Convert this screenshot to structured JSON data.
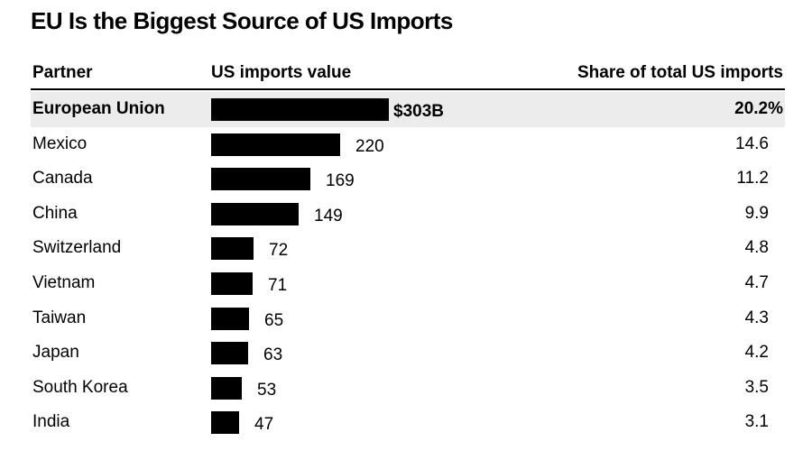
{
  "chart_data": {
    "type": "table",
    "title": "EU Is the Biggest Source of US Imports",
    "columns": [
      "Partner",
      "US imports value",
      "Share of total US imports"
    ],
    "highlight_index": 0,
    "rows": [
      {
        "partner": "European Union",
        "value": 303,
        "value_label": "$303B",
        "share": "20.2%"
      },
      {
        "partner": "Mexico",
        "value": 220,
        "value_label": "220",
        "share": "14.6"
      },
      {
        "partner": "Canada",
        "value": 169,
        "value_label": "169",
        "share": "11.2"
      },
      {
        "partner": "China",
        "value": 149,
        "value_label": "149",
        "share": "9.9"
      },
      {
        "partner": "Switzerland",
        "value": 72,
        "value_label": "72",
        "share": "4.8"
      },
      {
        "partner": "Vietnam",
        "value": 71,
        "value_label": "71",
        "share": "4.7"
      },
      {
        "partner": "Taiwan",
        "value": 65,
        "value_label": "65",
        "share": "4.3"
      },
      {
        "partner": "Japan",
        "value": 63,
        "value_label": "63",
        "share": "4.2"
      },
      {
        "partner": "South Korea",
        "value": 53,
        "value_label": "53",
        "share": "3.5"
      },
      {
        "partner": "India",
        "value": 47,
        "value_label": "47",
        "share": "3.1"
      }
    ],
    "colors": {
      "bar": "#000000",
      "highlight_bg": "#ececec"
    }
  }
}
